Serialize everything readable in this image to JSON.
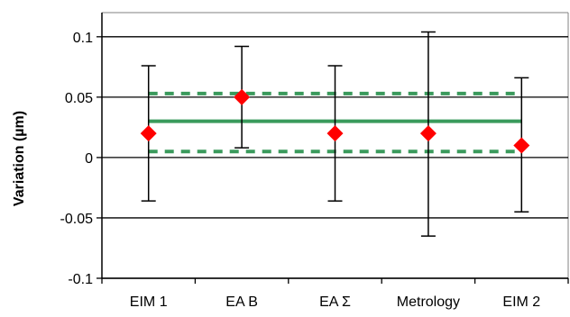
{
  "chart_data": {
    "type": "scatter",
    "title": "",
    "xlabel": "",
    "ylabel": "Variation (µm)",
    "ylim": [
      -0.1,
      0.12
    ],
    "yticks": [
      -0.1,
      -0.05,
      0,
      0.05,
      0.1
    ],
    "ytick_labels": [
      "-0.1",
      "-0.05",
      "0",
      "0.05",
      "0.1"
    ],
    "grid": true,
    "legend": "none",
    "categories": [
      "EIM 1",
      "EA B",
      "EA Σ",
      "Metrology",
      "EIM 2"
    ],
    "series": [
      {
        "values": [
          0.02,
          0.05,
          0.02,
          0.02,
          0.01
        ],
        "error_low": [
          -0.036,
          0.008,
          -0.036,
          -0.065,
          -0.045
        ],
        "error_high": [
          0.076,
          0.092,
          0.076,
          0.104,
          0.066
        ],
        "color": "#ff0000",
        "marker": "diamond"
      }
    ],
    "reference_lines": [
      {
        "value": 0.03,
        "style": "solid",
        "color": "#3a9a5c"
      },
      {
        "value": 0.053,
        "style": "dashed",
        "color": "#3a9a5c"
      },
      {
        "value": 0.005,
        "style": "dashed",
        "color": "#3a9a5c"
      }
    ],
    "colors": {
      "grid": "#000000",
      "frame": "#808080",
      "error_bar": "#000000"
    }
  }
}
